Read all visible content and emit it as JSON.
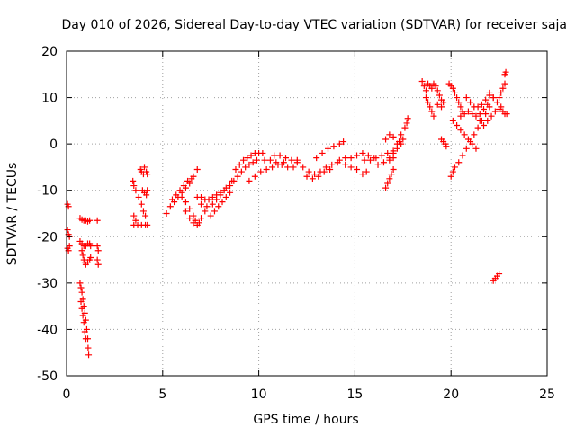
{
  "chart_data": {
    "type": "scatter",
    "title": "Day 010 of 2026, Sidereal Day-to-day VTEC variation (SDTVAR) for receiver saja",
    "xlabel": "GPS time / hours",
    "ylabel": "SDTVAR / TECUs",
    "xlim": [
      0,
      25
    ],
    "ylim": [
      -50,
      20
    ],
    "xticks": [
      0,
      5,
      10,
      15,
      20,
      25
    ],
    "yticks": [
      -50,
      -40,
      -30,
      -20,
      -10,
      0,
      10,
      20
    ],
    "grid": true,
    "marker": "plus",
    "marker_color": "#ff0000",
    "series": [
      {
        "values": [
          [
            0.05,
            -13
          ],
          [
            0.1,
            -13.5
          ],
          [
            0.05,
            -18.5
          ],
          [
            0.1,
            -19.5
          ],
          [
            0.15,
            -20
          ],
          [
            0.05,
            -22.5
          ],
          [
            0.1,
            -23
          ],
          [
            0.15,
            -22
          ],
          [
            0.7,
            -16
          ],
          [
            0.8,
            -16.3
          ],
          [
            0.9,
            -16.5
          ],
          [
            1.0,
            -16.5
          ],
          [
            1.1,
            -16.7
          ],
          [
            1.2,
            -16.5
          ],
          [
            1.6,
            -16.5
          ],
          [
            0.7,
            -21
          ],
          [
            0.8,
            -21.5
          ],
          [
            0.9,
            -22
          ],
          [
            1.0,
            -22
          ],
          [
            1.1,
            -21.5
          ],
          [
            1.2,
            -21.5
          ],
          [
            1.25,
            -22
          ],
          [
            0.8,
            -23
          ],
          [
            0.85,
            -24
          ],
          [
            0.9,
            -25
          ],
          [
            0.95,
            -25.5
          ],
          [
            1.0,
            -26
          ],
          [
            1.1,
            -25.5
          ],
          [
            1.2,
            -25
          ],
          [
            1.25,
            -24.5
          ],
          [
            1.6,
            -22
          ],
          [
            1.65,
            -23
          ],
          [
            1.6,
            -25
          ],
          [
            1.65,
            -26
          ],
          [
            0.7,
            -30
          ],
          [
            0.75,
            -31
          ],
          [
            0.8,
            -32
          ],
          [
            0.85,
            -33.5
          ],
          [
            0.9,
            -35
          ],
          [
            0.95,
            -36.5
          ],
          [
            1.0,
            -38
          ],
          [
            1.05,
            -40
          ],
          [
            1.1,
            -42
          ],
          [
            1.12,
            -44
          ],
          [
            1.15,
            -45.5
          ],
          [
            0.75,
            -34
          ],
          [
            0.8,
            -35.5
          ],
          [
            0.85,
            -37
          ],
          [
            0.9,
            -38.5
          ],
          [
            0.95,
            -40.5
          ],
          [
            1.0,
            -42
          ],
          [
            3.45,
            -8
          ],
          [
            3.5,
            -9
          ],
          [
            3.6,
            -10
          ],
          [
            3.75,
            -11.5
          ],
          [
            3.9,
            -13
          ],
          [
            3.5,
            -15.5
          ],
          [
            3.6,
            -16.5
          ],
          [
            3.5,
            -17.5
          ],
          [
            3.7,
            -17.5
          ],
          [
            3.9,
            -17.5
          ],
          [
            4.1,
            -17.5
          ],
          [
            4.2,
            -17.5
          ],
          [
            3.85,
            -5.5
          ],
          [
            3.9,
            -6
          ],
          [
            4.0,
            -6.5
          ],
          [
            4.05,
            -5
          ],
          [
            4.15,
            -6
          ],
          [
            4.2,
            -6.5
          ],
          [
            3.95,
            -10
          ],
          [
            4.05,
            -10.5
          ],
          [
            4.15,
            -11
          ],
          [
            4.2,
            -10
          ],
          [
            4.0,
            -14.5
          ],
          [
            4.1,
            -15.5
          ],
          [
            5.2,
            -15
          ],
          [
            5.4,
            -13.5
          ],
          [
            5.6,
            -12.5
          ],
          [
            5.8,
            -11.5
          ],
          [
            6.0,
            -10.5
          ],
          [
            6.2,
            -9.5
          ],
          [
            6.4,
            -8.5
          ],
          [
            6.6,
            -7
          ],
          [
            6.8,
            -5.5
          ],
          [
            5.5,
            -12
          ],
          [
            5.7,
            -11
          ],
          [
            5.9,
            -10
          ],
          [
            6.1,
            -9
          ],
          [
            6.3,
            -8
          ],
          [
            6.5,
            -7.5
          ],
          [
            6.0,
            -11.5
          ],
          [
            6.2,
            -12.5
          ],
          [
            6.4,
            -14
          ],
          [
            6.6,
            -15.5
          ],
          [
            6.7,
            -16.5
          ],
          [
            6.8,
            -17.5
          ],
          [
            6.9,
            -17
          ],
          [
            7.0,
            -16
          ],
          [
            7.2,
            -14.5
          ],
          [
            6.2,
            -14.5
          ],
          [
            6.4,
            -16
          ],
          [
            6.6,
            -17
          ],
          [
            6.8,
            -11.5
          ],
          [
            7.0,
            -11.5
          ],
          [
            7.2,
            -12
          ],
          [
            7.4,
            -12
          ],
          [
            7.6,
            -11.5
          ],
          [
            7.8,
            -11
          ],
          [
            8.0,
            -10.5
          ],
          [
            8.2,
            -10
          ],
          [
            7.0,
            -13
          ],
          [
            7.3,
            -13.5
          ],
          [
            7.6,
            -13
          ],
          [
            7.8,
            -12
          ],
          [
            8.0,
            -11
          ],
          [
            8.3,
            -9.5
          ],
          [
            8.6,
            -8
          ],
          [
            7.5,
            -15.5
          ],
          [
            7.7,
            -14.5
          ],
          [
            7.9,
            -13.5
          ],
          [
            8.1,
            -12.5
          ],
          [
            8.3,
            -11.5
          ],
          [
            8.5,
            -10.5
          ],
          [
            8.5,
            -9
          ],
          [
            8.7,
            -8
          ],
          [
            8.9,
            -7
          ],
          [
            9.1,
            -6
          ],
          [
            9.3,
            -5
          ],
          [
            9.5,
            -4.5
          ],
          [
            9.7,
            -4
          ],
          [
            9.9,
            -3.5
          ],
          [
            8.8,
            -5.5
          ],
          [
            9.0,
            -4.5
          ],
          [
            9.2,
            -3.5
          ],
          [
            9.4,
            -3
          ],
          [
            9.6,
            -2.5
          ],
          [
            9.8,
            -2
          ],
          [
            10.0,
            -2
          ],
          [
            10.2,
            -2
          ],
          [
            9.5,
            -8
          ],
          [
            9.8,
            -7
          ],
          [
            10.1,
            -6
          ],
          [
            10.4,
            -5.5
          ],
          [
            10.7,
            -5
          ],
          [
            11.0,
            -4.5
          ],
          [
            11.3,
            -4
          ],
          [
            10.3,
            -3.5
          ],
          [
            10.6,
            -3.5
          ],
          [
            10.9,
            -4
          ],
          [
            11.2,
            -4.5
          ],
          [
            11.5,
            -5
          ],
          [
            11.8,
            -5
          ],
          [
            10.8,
            -2.5
          ],
          [
            11.1,
            -2.5
          ],
          [
            11.4,
            -3
          ],
          [
            11.7,
            -3.5
          ],
          [
            12.0,
            -3.5
          ],
          [
            12.0,
            -4
          ],
          [
            12.3,
            -5
          ],
          [
            12.6,
            -6
          ],
          [
            12.9,
            -6.5
          ],
          [
            13.2,
            -6
          ],
          [
            13.5,
            -5
          ],
          [
            13.8,
            -4.5
          ],
          [
            14.1,
            -4
          ],
          [
            12.5,
            -7
          ],
          [
            12.8,
            -7.5
          ],
          [
            13.1,
            -7
          ],
          [
            13.4,
            -6
          ],
          [
            13.7,
            -5.5
          ],
          [
            13.0,
            -3
          ],
          [
            13.3,
            -2
          ],
          [
            13.6,
            -1
          ],
          [
            13.9,
            -0.5
          ],
          [
            14.2,
            0
          ],
          [
            14.4,
            0.5
          ],
          [
            14.2,
            -3.5
          ],
          [
            14.5,
            -3
          ],
          [
            14.8,
            -3
          ],
          [
            15.1,
            -2.5
          ],
          [
            15.4,
            -2
          ],
          [
            15.7,
            -2.5
          ],
          [
            16.0,
            -3
          ],
          [
            14.5,
            -4.5
          ],
          [
            14.8,
            -5
          ],
          [
            15.1,
            -5.5
          ],
          [
            15.4,
            -6.5
          ],
          [
            15.6,
            -6
          ],
          [
            15.5,
            -3.5
          ],
          [
            15.8,
            -3.5
          ],
          [
            16.1,
            -3
          ],
          [
            16.4,
            -2.5
          ],
          [
            16.7,
            -2
          ],
          [
            17.0,
            -1.5
          ],
          [
            16.2,
            -4.5
          ],
          [
            16.5,
            -4
          ],
          [
            16.8,
            -3.5
          ],
          [
            17.0,
            -3
          ],
          [
            17.2,
            -1
          ],
          [
            17.4,
            0
          ],
          [
            17.5,
            1
          ],
          [
            16.8,
            -3
          ],
          [
            17.0,
            -2
          ],
          [
            17.2,
            0
          ],
          [
            17.4,
            2
          ],
          [
            17.6,
            3.5
          ],
          [
            17.7,
            4.5
          ],
          [
            17.75,
            5.5
          ],
          [
            16.6,
            -9.5
          ],
          [
            16.7,
            -8.5
          ],
          [
            16.8,
            -7.5
          ],
          [
            16.9,
            -6.5
          ],
          [
            17.0,
            -5.5
          ],
          [
            17.3,
            0.5
          ],
          [
            17.0,
            1.5
          ],
          [
            16.8,
            2
          ],
          [
            16.6,
            1
          ],
          [
            18.5,
            13.5
          ],
          [
            18.6,
            12.5
          ],
          [
            18.7,
            11.5
          ],
          [
            18.8,
            13
          ],
          [
            18.9,
            12.5
          ],
          [
            19.0,
            12
          ],
          [
            19.1,
            13
          ],
          [
            19.2,
            12.5
          ],
          [
            19.3,
            11.5
          ],
          [
            19.4,
            10.5
          ],
          [
            19.5,
            9.5
          ],
          [
            19.6,
            9
          ],
          [
            19.3,
            8.5
          ],
          [
            19.5,
            8
          ],
          [
            18.7,
            10
          ],
          [
            18.8,
            9
          ],
          [
            18.9,
            8
          ],
          [
            19.0,
            7
          ],
          [
            19.1,
            6
          ],
          [
            19.5,
            1
          ],
          [
            19.6,
            0.5
          ],
          [
            19.7,
            0
          ],
          [
            19.75,
            -0.5
          ],
          [
            19.9,
            13
          ],
          [
            20.0,
            12.5
          ],
          [
            20.1,
            12
          ],
          [
            20.2,
            11
          ],
          [
            20.3,
            10
          ],
          [
            20.4,
            9
          ],
          [
            20.5,
            8
          ],
          [
            20.6,
            7
          ],
          [
            20.0,
            -7
          ],
          [
            20.1,
            -6
          ],
          [
            20.2,
            -5
          ],
          [
            20.4,
            -4
          ],
          [
            20.6,
            -2.5
          ],
          [
            20.8,
            -1
          ],
          [
            21.0,
            0.5
          ],
          [
            21.2,
            2
          ],
          [
            21.4,
            3.5
          ],
          [
            21.6,
            5
          ],
          [
            21.8,
            6.5
          ],
          [
            22.0,
            8
          ],
          [
            20.1,
            5
          ],
          [
            20.3,
            4
          ],
          [
            20.5,
            3
          ],
          [
            20.7,
            2
          ],
          [
            20.9,
            1
          ],
          [
            21.1,
            0
          ],
          [
            21.3,
            -1
          ],
          [
            20.5,
            6
          ],
          [
            20.7,
            6.5
          ],
          [
            20.9,
            7
          ],
          [
            21.1,
            6.5
          ],
          [
            21.3,
            6
          ],
          [
            21.5,
            6.5
          ],
          [
            21.7,
            7.5
          ],
          [
            21.9,
            8.5
          ],
          [
            20.8,
            10
          ],
          [
            21.0,
            9
          ],
          [
            21.2,
            8
          ],
          [
            21.4,
            8
          ],
          [
            21.6,
            8.5
          ],
          [
            21.8,
            9.5
          ],
          [
            22.0,
            10.5
          ],
          [
            22.2,
            10
          ],
          [
            21.5,
            5
          ],
          [
            21.7,
            4
          ],
          [
            21.9,
            5
          ],
          [
            22.1,
            6
          ],
          [
            22.3,
            7
          ],
          [
            22.5,
            7.5
          ],
          [
            22.7,
            7
          ],
          [
            22.9,
            6.5
          ],
          [
            22.0,
            11
          ],
          [
            22.2,
            10
          ],
          [
            22.4,
            9
          ],
          [
            22.6,
            8
          ],
          [
            22.8,
            6.5
          ],
          [
            22.5,
            10
          ],
          [
            22.6,
            11
          ],
          [
            22.7,
            12
          ],
          [
            22.8,
            13
          ],
          [
            22.85,
            15.5
          ],
          [
            22.8,
            15
          ],
          [
            22.2,
            -29.5
          ],
          [
            22.3,
            -29
          ],
          [
            22.4,
            -28.5
          ],
          [
            22.5,
            -28
          ]
        ]
      }
    ]
  }
}
